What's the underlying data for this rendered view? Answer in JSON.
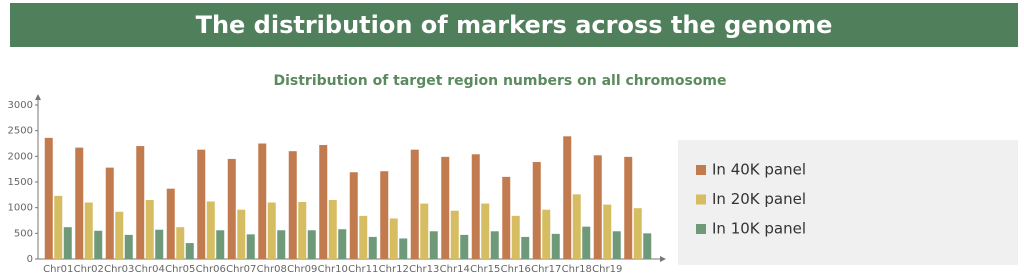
{
  "banner": {
    "title": "The distribution of markers across the genome"
  },
  "chart_data": {
    "type": "bar",
    "title": "Distribution of target region numbers on all chromosome",
    "categories": [
      "Chr01",
      "Chr02",
      "Chr03",
      "Chr04",
      "Chr05",
      "Chr06",
      "Chr07",
      "Chr08",
      "Chr09",
      "Chr10",
      "Chr11",
      "Chr12",
      "Chr13",
      "Chr14",
      "Chr15",
      "Chr16",
      "Chr17",
      "Chr18",
      "Chr19",
      null
    ],
    "series": [
      {
        "name": "In 40K panel",
        "color": "#c27a4f",
        "values": [
          2360,
          2170,
          1780,
          2200,
          1370,
          2130,
          1950,
          2250,
          2100,
          2220,
          1690,
          1710,
          2130,
          1990,
          2040,
          1600,
          1890,
          2390,
          2020,
          1990
        ]
      },
      {
        "name": "In 20K panel",
        "color": "#d6bd62",
        "values": [
          1230,
          1100,
          920,
          1150,
          620,
          1120,
          960,
          1100,
          1110,
          1150,
          840,
          790,
          1080,
          940,
          1080,
          840,
          960,
          1260,
          1060,
          990
        ]
      },
      {
        "name": "In 10K panel",
        "color": "#6f9a7a",
        "values": [
          620,
          550,
          470,
          570,
          310,
          560,
          480,
          560,
          560,
          580,
          430,
          400,
          540,
          470,
          540,
          430,
          490,
          630,
          540,
          500
        ]
      }
    ],
    "ylim": [
      0,
      3000
    ],
    "yticks": [
      0,
      500,
      1000,
      1500,
      2000,
      2500,
      3000
    ],
    "grid": false,
    "legend": "right"
  }
}
